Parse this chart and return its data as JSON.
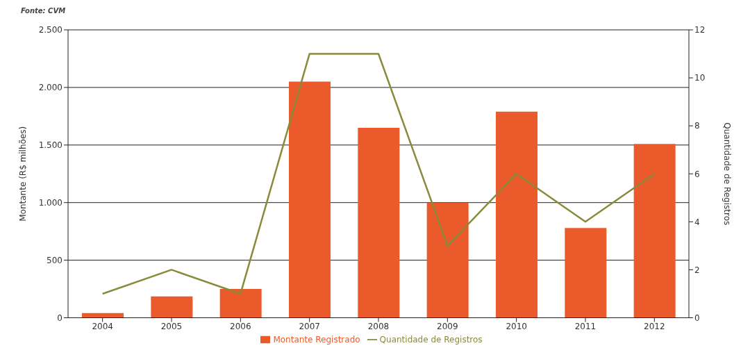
{
  "chart_data": {
    "type": "bar",
    "categories": [
      "2004",
      "2005",
      "2006",
      "2007",
      "2008",
      "2009",
      "2010",
      "2011",
      "2012"
    ],
    "series": [
      {
        "name": "Montante Registrado",
        "color": "#eb5a2a",
        "values": [
          40,
          185,
          250,
          2050,
          1650,
          1000,
          1790,
          780,
          1510
        ]
      },
      {
        "name": "Quantidade de Registros",
        "type": "line",
        "axis": "y2",
        "color": "#8a8a3c",
        "values": [
          1,
          2,
          1,
          11,
          11,
          3,
          6,
          4,
          6
        ]
      }
    ],
    "ylabel": "Montante  (R$ milhões)",
    "y2label": "Quantidade de Registros",
    "ylim": [
      0,
      2500
    ],
    "yticks": [
      0,
      {
        "value": 500,
        "label": "500"
      },
      {
        "value": 1000,
        "label": "1.000"
      },
      {
        "value": 1500,
        "label": "1.500"
      },
      {
        "value": 2000,
        "label": "2.000"
      },
      {
        "value": 2500,
        "label": "2.500"
      }
    ],
    "y2lim": [
      0,
      12
    ],
    "y2ticks": [
      0,
      2,
      4,
      6,
      8,
      10,
      12
    ],
    "grid": "y",
    "legend": "bottom",
    "marker": "none",
    "annotations": [
      "Fonte: CVM"
    ]
  }
}
